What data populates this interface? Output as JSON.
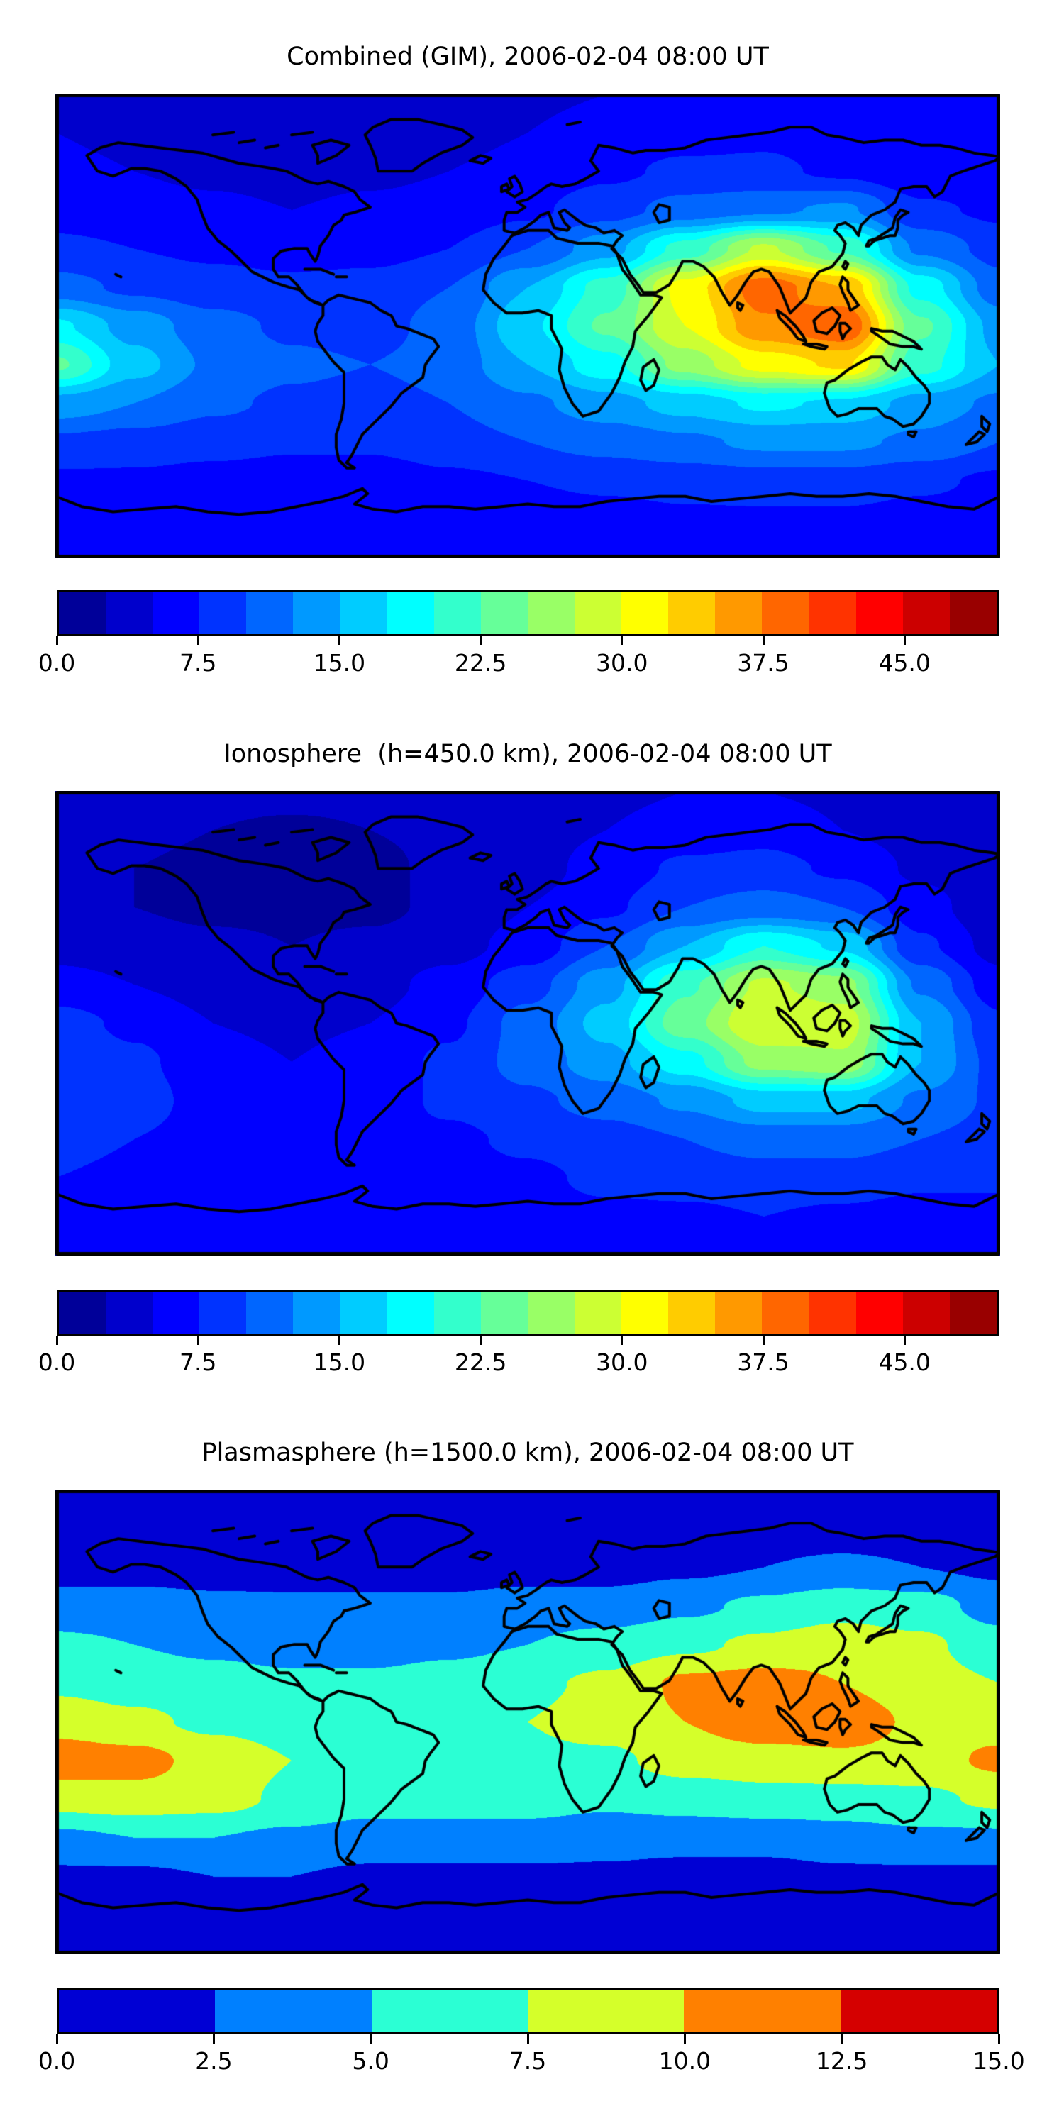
{
  "figure": {
    "background_color": "#ffffff",
    "text_color": "#000000",
    "coastline_color": "#000000"
  },
  "chart_data": [
    {
      "type": "heatmap",
      "subtype": "filled-contour-world-map",
      "title": "Combined (GIM), 2006-02-04 08:00 UT",
      "projection": "equirectangular",
      "colormap": "jet",
      "vmin": 0,
      "vmax": 50,
      "level_step": 2.5,
      "colorbar_tick_labels": [
        "0.0",
        "7.5",
        "15.0",
        "22.5",
        "30.0",
        "37.5",
        "45.0"
      ],
      "colorbar_position": "bottom",
      "lons": [
        -180,
        -150,
        -120,
        -90,
        -60,
        -30,
        0,
        30,
        60,
        90,
        120,
        150,
        180
      ],
      "lats": [
        90,
        75,
        60,
        45,
        30,
        15,
        0,
        -15,
        -30,
        -45,
        -60,
        -75,
        -90
      ],
      "values": [
        [
          5,
          5,
          5,
          4.5,
          4,
          4,
          4.5,
          5,
          5.5,
          5.5,
          5.5,
          5,
          5
        ],
        [
          5,
          4.5,
          4,
          3.5,
          3.5,
          4,
          5,
          6,
          6.5,
          7,
          6,
          5,
          5
        ],
        [
          5.5,
          5,
          4.5,
          4,
          4.5,
          5,
          6,
          7,
          8,
          8,
          7,
          5.5,
          5
        ],
        [
          6.5,
          6,
          5.5,
          5,
          5.5,
          6,
          7,
          9,
          11,
          12,
          13,
          8,
          7
        ],
        [
          8,
          7.5,
          7,
          6.5,
          6.5,
          7.5,
          10,
          14,
          21,
          28,
          22,
          12,
          9
        ],
        [
          11,
          9.5,
          8.5,
          8,
          8.5,
          10,
          15,
          21,
          31,
          39,
          35,
          19,
          11
        ],
        [
          18,
          14,
          11,
          9.5,
          9,
          11,
          17,
          23,
          30,
          37,
          40,
          23,
          14
        ],
        [
          23,
          16,
          12,
          10.5,
          10,
          11,
          15,
          19,
          26,
          31,
          33,
          21,
          15
        ],
        [
          14,
          12.5,
          10.5,
          9.5,
          9,
          10,
          12,
          14,
          16,
          18,
          17,
          14,
          12
        ],
        [
          9.5,
          9,
          8.5,
          8,
          8,
          9,
          10,
          11,
          12,
          13,
          13,
          12,
          10
        ],
        [
          7,
          7,
          6.5,
          6,
          6,
          7,
          7.5,
          8,
          8.5,
          9,
          9,
          8,
          7
        ],
        [
          6,
          6,
          5.5,
          5,
          5,
          5.5,
          6,
          6.5,
          7,
          7,
          7,
          6.5,
          6
        ],
        [
          5.5,
          5.5,
          5,
          5,
          5,
          5,
          5.5,
          5.5,
          6,
          6,
          6,
          5.5,
          5.5
        ]
      ]
    },
    {
      "type": "heatmap",
      "subtype": "filled-contour-world-map",
      "title": "Ionosphere  (h=450.0 km), 2006-02-04 08:00 UT",
      "projection": "equirectangular",
      "colormap": "jet",
      "vmin": 0,
      "vmax": 50,
      "level_step": 2.5,
      "colorbar_tick_labels": [
        "0.0",
        "7.5",
        "15.0",
        "22.5",
        "30.0",
        "37.5",
        "45.0"
      ],
      "colorbar_position": "bottom",
      "lons": [
        -180,
        -150,
        -120,
        -90,
        -60,
        -30,
        0,
        30,
        60,
        90,
        120,
        150,
        180
      ],
      "lats": [
        90,
        75,
        60,
        45,
        30,
        15,
        0,
        -15,
        -30,
        -45,
        -60,
        -75,
        -90
      ],
      "values": [
        [
          4,
          4,
          3.5,
          3.5,
          3.5,
          4,
          4,
          4.5,
          5,
          5,
          4.5,
          4,
          4
        ],
        [
          3.5,
          3,
          2.5,
          2,
          2.5,
          3,
          4,
          5,
          6,
          6.5,
          5,
          4,
          3.5
        ],
        [
          3,
          2.5,
          2,
          2,
          2,
          3,
          4,
          6,
          8,
          8.5,
          7,
          4.5,
          3
        ],
        [
          3,
          2.5,
          2,
          2,
          2,
          3,
          5,
          7,
          10,
          11,
          10,
          6,
          3
        ],
        [
          4,
          3.5,
          3,
          2.5,
          3,
          4,
          6,
          10,
          15,
          20,
          17,
          8,
          4
        ],
        [
          6,
          5,
          4,
          3.5,
          4,
          6,
          9,
          14,
          22,
          28,
          26,
          12,
          6
        ],
        [
          8.5,
          7,
          5,
          4.5,
          5,
          7,
          11,
          16,
          24,
          30,
          29,
          15,
          8
        ],
        [
          10,
          8,
          6,
          5,
          6,
          8,
          11,
          14,
          19,
          26,
          27,
          15,
          9
        ],
        [
          10,
          8.5,
          6.5,
          5.5,
          6,
          8,
          9.5,
          11,
          13,
          16,
          16,
          12,
          9.5
        ],
        [
          9,
          7.5,
          6.5,
          6,
          6.5,
          7,
          8,
          9,
          10,
          11,
          11,
          10,
          9
        ],
        [
          7.5,
          6.5,
          6,
          5.5,
          6,
          6.5,
          7,
          8,
          8.5,
          9,
          9,
          8,
          8
        ],
        [
          6.5,
          6,
          5.5,
          5.5,
          5.5,
          6,
          6.5,
          7,
          7,
          7.5,
          7,
          6.5,
          6.5
        ],
        [
          6,
          6,
          5.5,
          5.5,
          5.5,
          6,
          6,
          6.5,
          6.5,
          6.5,
          6.5,
          6,
          6
        ]
      ]
    },
    {
      "type": "heatmap",
      "subtype": "filled-contour-world-map",
      "title": "Plasmasphere (h=1500.0 km), 2006-02-04 08:00 UT",
      "projection": "equirectangular",
      "colormap": "jet",
      "vmin": 0,
      "vmax": 15,
      "level_step": 2.5,
      "colorbar_tick_labels": [
        "0.0",
        "2.5",
        "5.0",
        "7.5",
        "10.0",
        "12.5",
        "15.0"
      ],
      "colorbar_position": "bottom",
      "lons": [
        -180,
        -150,
        -120,
        -90,
        -60,
        -30,
        0,
        30,
        60,
        90,
        120,
        150,
        180
      ],
      "lats": [
        90,
        75,
        60,
        45,
        30,
        15,
        0,
        -15,
        -30,
        -45,
        -60,
        -75,
        -90
      ],
      "values": [
        [
          1,
          1,
          1,
          1,
          1,
          1,
          1,
          1,
          1,
          1,
          1,
          1,
          1
        ],
        [
          1,
          1,
          1,
          1,
          1,
          1,
          1,
          1,
          1,
          1.2,
          1.2,
          1,
          1
        ],
        [
          1.5,
          1.5,
          1.5,
          1.2,
          1.2,
          1.2,
          1.5,
          1.5,
          2,
          2.5,
          3,
          2.5,
          2
        ],
        [
          3.5,
          3.5,
          3,
          3,
          3,
          3,
          3.5,
          3.5,
          4.5,
          5.5,
          6.5,
          6,
          4
        ],
        [
          5.5,
          5,
          4.5,
          4,
          4,
          4.5,
          5,
          6,
          7,
          8,
          9,
          8,
          6
        ],
        [
          7,
          6.5,
          6,
          5.5,
          5.5,
          6,
          7,
          8,
          10.5,
          11,
          10,
          8.5,
          7.5
        ],
        [
          9,
          8,
          7,
          6.5,
          6.5,
          6.5,
          7.5,
          8.5,
          10,
          11.5,
          11.5,
          9.5,
          9
        ],
        [
          11.5,
          11,
          9,
          7.5,
          6.5,
          6.5,
          7,
          7,
          8.5,
          9,
          9.5,
          9,
          10.5
        ],
        [
          8.5,
          9,
          8.5,
          7,
          6,
          6,
          6,
          5.5,
          6,
          6.5,
          6.5,
          7,
          8
        ],
        [
          4.5,
          5,
          5,
          4.5,
          4,
          4,
          4,
          3.5,
          3.5,
          3.5,
          4,
          4.5,
          4.5
        ],
        [
          2,
          2,
          2.5,
          2.5,
          2,
          2,
          2,
          2,
          1.5,
          1.5,
          2,
          2,
          2
        ],
        [
          1,
          1,
          1.2,
          1.2,
          1,
          1,
          1,
          1,
          1,
          1,
          1,
          1,
          1
        ],
        [
          1,
          1,
          1,
          1,
          1,
          1,
          1,
          1,
          1,
          1,
          1,
          1,
          1
        ]
      ]
    }
  ]
}
